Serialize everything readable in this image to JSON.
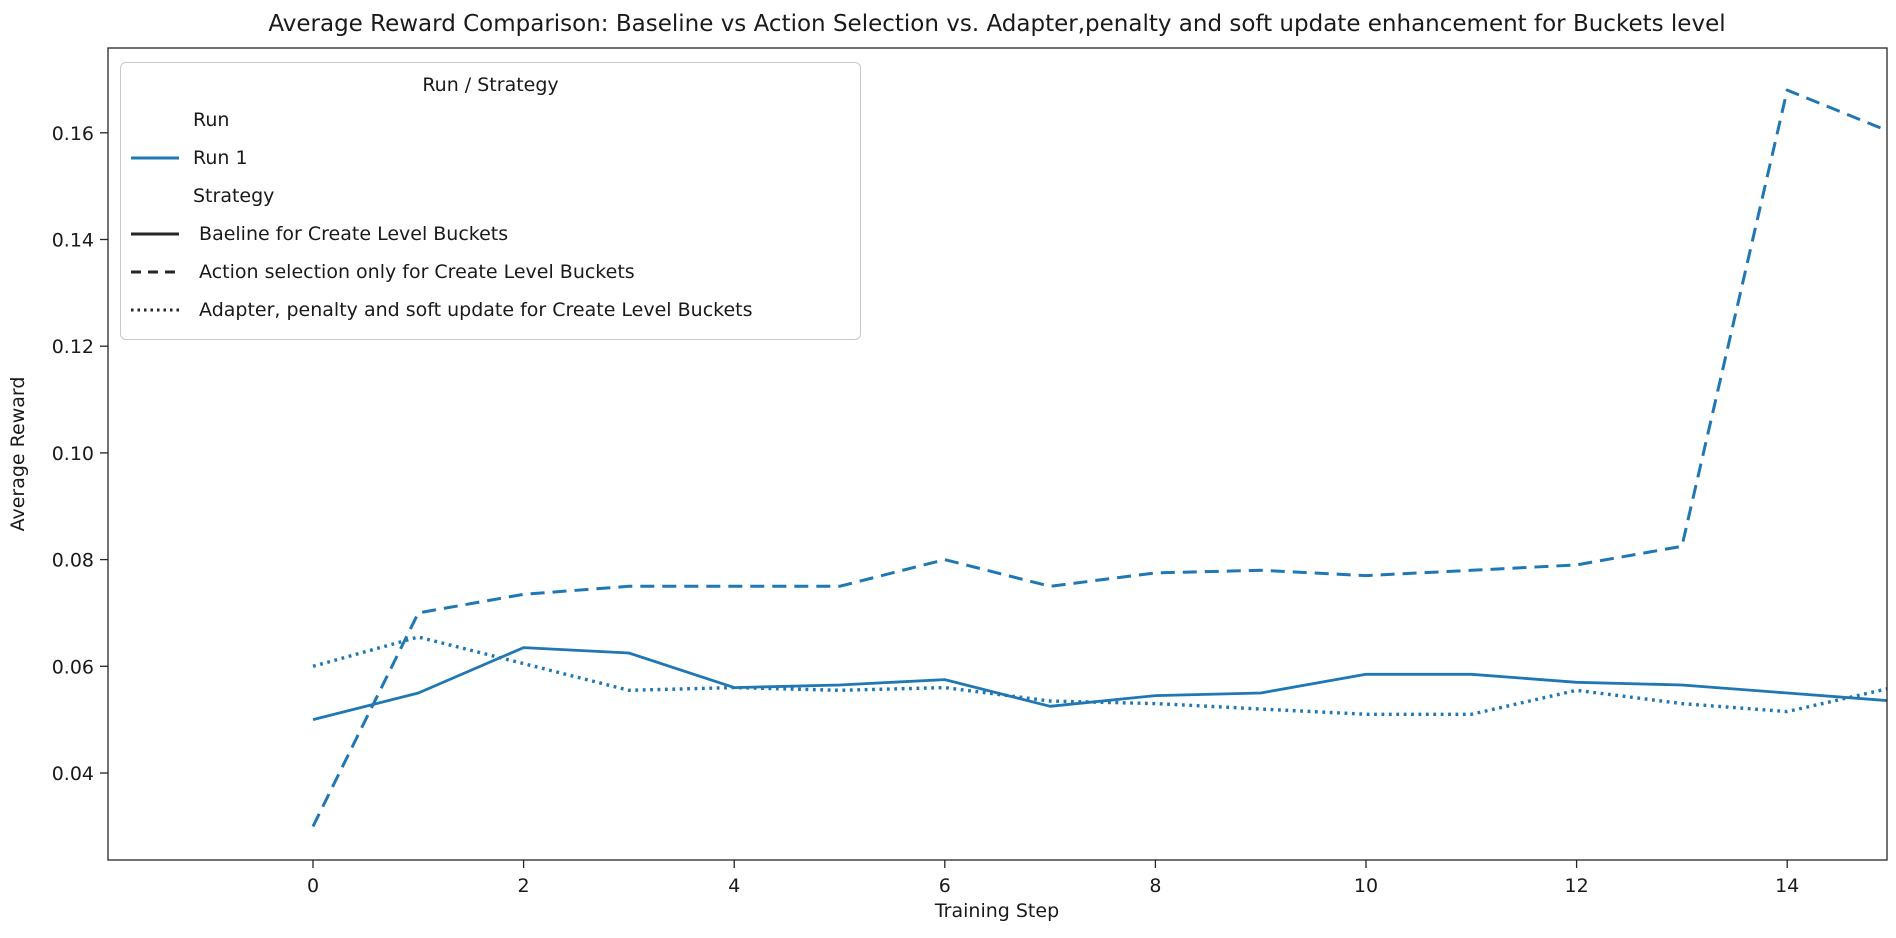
{
  "chart_data": {
    "type": "line",
    "title": "Average Reward Comparison: Baseline vs Action Selection vs. Adapter,penalty and soft update enhancement for Buckets level",
    "xlabel": "Training Step",
    "ylabel": "Average Reward",
    "line_color": "#1f77b4",
    "grid": false,
    "legend_position": "upper left",
    "x": [
      0,
      1,
      2,
      3,
      4,
      5,
      6,
      7,
      8,
      9,
      10,
      11,
      12,
      13,
      14,
      15
    ],
    "xticks": [
      0,
      2,
      4,
      6,
      8,
      10,
      12,
      14
    ],
    "yticks": [
      0.04,
      0.06,
      0.08,
      0.1,
      0.12,
      0.14,
      0.16
    ],
    "xlim": [
      -1.95,
      14.95
    ],
    "ylim": [
      0.0237,
      0.1759
    ],
    "series": [
      {
        "name": "Baeline for Create Level Buckets",
        "run": "Run 1",
        "style": "solid",
        "values": [
          0.05,
          0.055,
          0.0635,
          0.0625,
          0.056,
          0.0565,
          0.0575,
          0.0525,
          0.0545,
          0.055,
          0.0585,
          0.0585,
          0.057,
          0.0565,
          0.055,
          0.0535
        ]
      },
      {
        "name": "Action selection only for Create Level Buckets",
        "run": "Run 1",
        "style": "dashed",
        "values": [
          0.03,
          0.07,
          0.0735,
          0.075,
          0.075,
          0.075,
          0.08,
          0.075,
          0.0775,
          0.078,
          0.077,
          0.078,
          0.079,
          0.0825,
          0.168,
          0.16
        ]
      },
      {
        "name": "Adapter, penalty and soft update for Create Level Buckets",
        "run": "Run 1",
        "style": "dotted",
        "values": [
          0.06,
          0.0655,
          0.0605,
          0.0555,
          0.056,
          0.0555,
          0.056,
          0.0535,
          0.053,
          0.052,
          0.051,
          0.051,
          0.0555,
          0.053,
          0.0515,
          0.056
        ]
      }
    ]
  },
  "legend": {
    "title": "Run / Strategy",
    "run_header": "Run",
    "run_items": [
      {
        "label": "Run 1",
        "style": "solid",
        "color": "#1f77b4"
      }
    ],
    "strategy_header": "Strategy",
    "strategy_items": [
      {
        "label": " Baeline for Create Level Buckets",
        "style": "solid",
        "color": "#262626"
      },
      {
        "label": " Action selection only for Create Level Buckets",
        "style": "dashed",
        "color": "#262626"
      },
      {
        "label": " Adapter, penalty and soft update for Create Level Buckets",
        "style": "dotted",
        "color": "#262626"
      }
    ]
  }
}
